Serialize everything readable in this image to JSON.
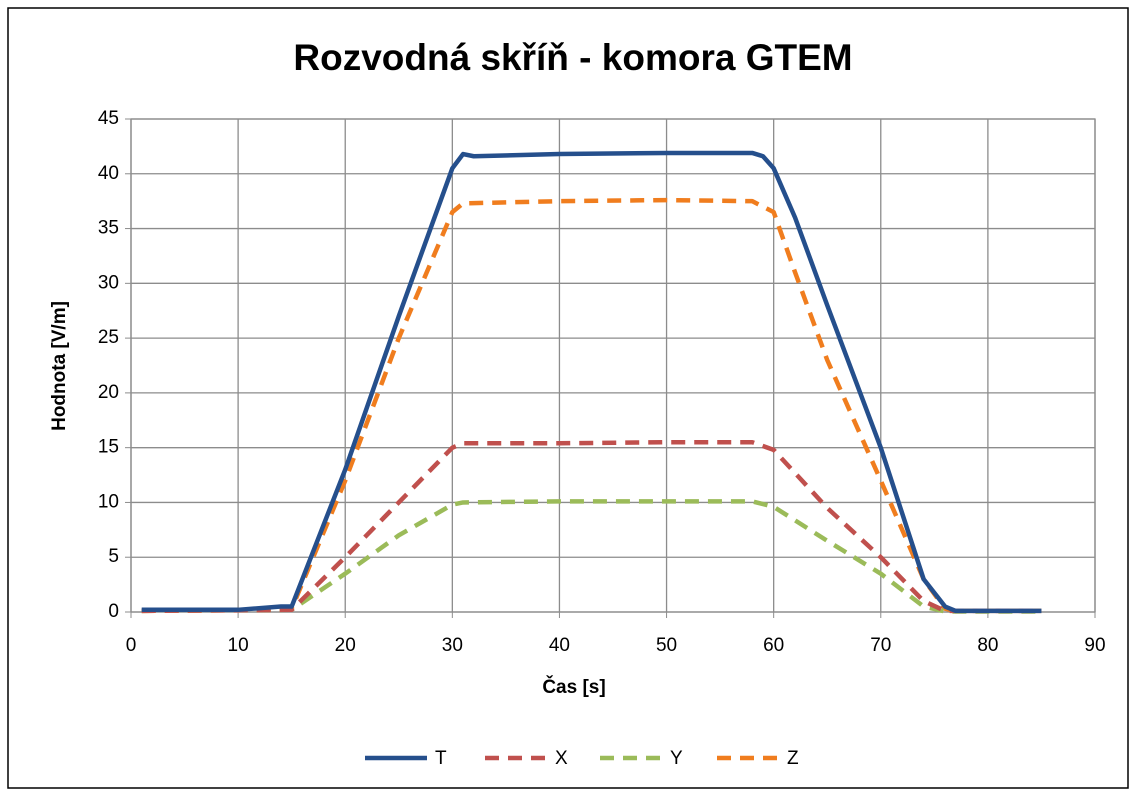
{
  "chart_data": {
    "type": "line",
    "title": "Rozvodná skříň - komora GTEM",
    "x_label": "Čas [s]",
    "y_label": "Hodnota [V/m]",
    "xlim": [
      0,
      90
    ],
    "xticks": [
      0,
      10,
      20,
      30,
      40,
      50,
      60,
      70,
      80,
      90
    ],
    "ylim": [
      0,
      45
    ],
    "yticks": [
      0,
      5,
      10,
      15,
      20,
      25,
      30,
      35,
      40,
      45
    ],
    "grid": true,
    "legend": "bottom",
    "series": [
      {
        "name": "T",
        "color": "#254f8c",
        "style": "solid",
        "x": [
          1,
          10,
          14,
          15,
          20,
          25,
          30,
          31,
          32,
          40,
          50,
          58,
          59,
          60,
          62,
          65,
          70,
          74,
          76,
          77,
          85
        ],
        "values": [
          0.2,
          0.2,
          0.5,
          0.5,
          13,
          27,
          40.5,
          41.8,
          41.6,
          41.8,
          41.9,
          41.9,
          41.6,
          40.5,
          36,
          28,
          15,
          3,
          0.5,
          0.1,
          0.1
        ]
      },
      {
        "name": "X",
        "color": "#c0504d",
        "style": "dashed",
        "x": [
          1,
          15,
          20,
          25,
          30,
          31,
          40,
          50,
          58,
          60,
          65,
          70,
          74,
          76,
          85
        ],
        "values": [
          0.1,
          0.2,
          5,
          10,
          15,
          15.4,
          15.4,
          15.5,
          15.5,
          14.8,
          9.5,
          5,
          1,
          0.1,
          0.1
        ]
      },
      {
        "name": "Y",
        "color": "#9bbb59",
        "style": "dashed",
        "x": [
          1,
          15,
          20,
          25,
          30,
          31,
          40,
          58,
          60,
          65,
          70,
          74,
          76,
          85
        ],
        "values": [
          0.1,
          0.2,
          3.5,
          7,
          9.8,
          10,
          10.1,
          10.1,
          9.6,
          6.5,
          3.5,
          0.5,
          0.05,
          0.05
        ]
      },
      {
        "name": "Z",
        "color": "#f07d1e",
        "style": "dashed",
        "x": [
          1,
          14,
          15,
          20,
          25,
          30,
          31,
          40,
          50,
          58,
          60,
          62,
          65,
          70,
          74,
          76,
          77,
          85
        ],
        "values": [
          0.1,
          0.2,
          0.3,
          12,
          25,
          36.5,
          37.3,
          37.5,
          37.6,
          37.5,
          36.5,
          31,
          23,
          12,
          3,
          0.3,
          0.1,
          0.1
        ]
      }
    ]
  }
}
